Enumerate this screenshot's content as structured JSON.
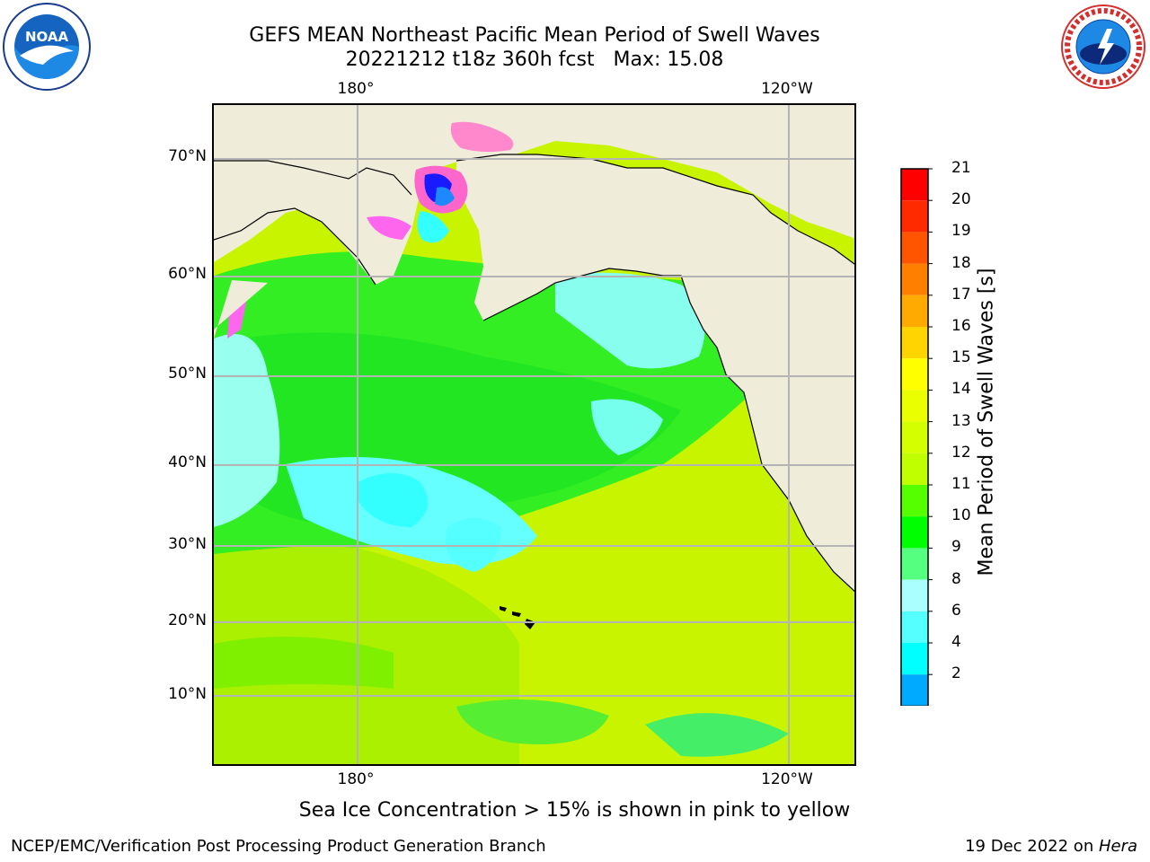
{
  "title": {
    "line1": "GEFS MEAN Northeast Pacific Mean Period of Swell Waves",
    "line2": "20221212 t18z 360h fcst   Max: 15.08"
  },
  "logos": {
    "left": {
      "name": "noaa-logo",
      "text": "NOAA"
    },
    "right": {
      "name": "national-weather-service-logo",
      "text": "NATIONAL WEATHER SERVICE"
    }
  },
  "map": {
    "lat_labels": [
      "70°N",
      "60°N",
      "50°N",
      "40°N",
      "30°N",
      "20°N",
      "10°N"
    ],
    "lon_labels_top": [
      "180°",
      "120°W"
    ],
    "lon_labels_bottom": [
      "180°",
      "120°W"
    ],
    "colors": {
      "land": "#efedda",
      "coast": "#000000",
      "grid": "#b4b4b4",
      "ice_pink": "#ff66cc"
    }
  },
  "colorbar": {
    "title": "Mean Period of Swell Waves [s]",
    "tick_labels": [
      "21",
      "20",
      "19",
      "18",
      "17",
      "16",
      "15",
      "14",
      "13",
      "12",
      "11",
      "10",
      "9",
      "8",
      "6",
      "4",
      "2"
    ],
    "colors_top_to_bottom": [
      "#ff0000",
      "#ff2a00",
      "#ff5500",
      "#ff7f00",
      "#ffaa00",
      "#ffd400",
      "#ffff00",
      "#eaff00",
      "#d4ff00",
      "#c0ff00",
      "#55ff00",
      "#00ff00",
      "#55ff7f",
      "#aaffff",
      "#55ffff",
      "#00ffff",
      "#00aaff"
    ],
    "underflow_color": "#0000ff"
  },
  "caption": "Sea Ice Concentration > 15% is shown in pink to yellow",
  "footer": {
    "left": "NCEP/EMC/Verification Post Processing Product Generation Branch",
    "right_prefix": "19 Dec 2022 on ",
    "right_host": "Hera"
  }
}
